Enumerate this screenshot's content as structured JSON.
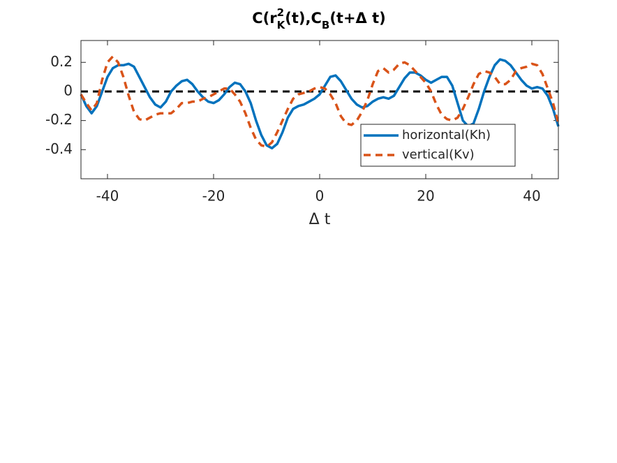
{
  "chart_data": {
    "type": "line",
    "title_parts": [
      "C(r",
      "2",
      "K",
      "(t),C",
      "B",
      "(t+Δ t)"
    ],
    "xlabel": "Δ t",
    "xlim": [
      -45,
      45
    ],
    "xticks": [
      -40,
      -20,
      0,
      20,
      40
    ],
    "ylim": [
      -0.6,
      0.35
    ],
    "yticks": [
      -0.4,
      -0.2,
      0,
      0.2
    ],
    "grid": false,
    "legend": "southeast",
    "reference_line": {
      "y": 0,
      "color": "#000000"
    },
    "x": [
      -45,
      -44,
      -43,
      -42,
      -41,
      -40,
      -39,
      -38,
      -37,
      -36,
      -35,
      -34,
      -33,
      -32,
      -31,
      -30,
      -29,
      -28,
      -27,
      -26,
      -25,
      -24,
      -23,
      -22,
      -21,
      -20,
      -19,
      -18,
      -17,
      -16,
      -15,
      -14,
      -13,
      -12,
      -11,
      -10,
      -9,
      -8,
      -7,
      -6,
      -5,
      -4,
      -3,
      -2,
      -1,
      0,
      1,
      2,
      3,
      4,
      5,
      6,
      7,
      8,
      9,
      10,
      11,
      12,
      13,
      14,
      15,
      16,
      17,
      18,
      19,
      20,
      21,
      22,
      23,
      24,
      25,
      26,
      27,
      28,
      29,
      30,
      31,
      32,
      33,
      34,
      35,
      36,
      37,
      38,
      39,
      40,
      41,
      42,
      43,
      44,
      45
    ],
    "series": [
      {
        "name": "horizontal(Kh)",
        "color": "#0072bd",
        "dash": false,
        "values": [
          -0.02,
          -0.1,
          -0.15,
          -0.1,
          0.0,
          0.1,
          0.16,
          0.18,
          0.18,
          0.19,
          0.17,
          0.1,
          0.03,
          -0.04,
          -0.09,
          -0.11,
          -0.07,
          0.0,
          0.04,
          0.07,
          0.08,
          0.05,
          0.0,
          -0.04,
          -0.07,
          -0.08,
          -0.06,
          -0.02,
          0.03,
          0.06,
          0.05,
          0.0,
          -0.08,
          -0.2,
          -0.3,
          -0.37,
          -0.39,
          -0.36,
          -0.28,
          -0.18,
          -0.12,
          -0.1,
          -0.09,
          -0.07,
          -0.05,
          -0.02,
          0.04,
          0.1,
          0.11,
          0.07,
          0.01,
          -0.05,
          -0.09,
          -0.11,
          -0.1,
          -0.07,
          -0.05,
          -0.04,
          -0.05,
          -0.03,
          0.03,
          0.09,
          0.13,
          0.13,
          0.11,
          0.08,
          0.06,
          0.08,
          0.1,
          0.1,
          0.04,
          -0.08,
          -0.2,
          -0.24,
          -0.22,
          -0.12,
          0.0,
          0.1,
          0.18,
          0.22,
          0.21,
          0.18,
          0.13,
          0.08,
          0.04,
          0.02,
          0.03,
          0.02,
          -0.03,
          -0.12,
          -0.24
        ]
      },
      {
        "name": "vertical(Kv)",
        "color": "#d95319",
        "dash": true,
        "values": [
          -0.02,
          -0.08,
          -0.13,
          -0.08,
          0.08,
          0.2,
          0.24,
          0.2,
          0.1,
          -0.03,
          -0.14,
          -0.19,
          -0.2,
          -0.18,
          -0.16,
          -0.15,
          -0.15,
          -0.15,
          -0.12,
          -0.08,
          -0.08,
          -0.07,
          -0.07,
          -0.05,
          -0.04,
          -0.02,
          0.0,
          0.02,
          0.02,
          -0.02,
          -0.07,
          -0.15,
          -0.25,
          -0.33,
          -0.37,
          -0.38,
          -0.35,
          -0.28,
          -0.2,
          -0.12,
          -0.05,
          -0.02,
          -0.01,
          0.0,
          0.02,
          0.03,
          0.02,
          -0.02,
          -0.08,
          -0.17,
          -0.22,
          -0.23,
          -0.2,
          -0.14,
          -0.06,
          0.05,
          0.14,
          0.16,
          0.13,
          0.15,
          0.19,
          0.2,
          0.18,
          0.14,
          0.1,
          0.06,
          0.0,
          -0.09,
          -0.16,
          -0.19,
          -0.2,
          -0.18,
          -0.12,
          -0.04,
          0.05,
          0.12,
          0.14,
          0.13,
          0.1,
          0.05,
          0.05,
          0.08,
          0.14,
          0.16,
          0.17,
          0.19,
          0.18,
          0.12,
          0.02,
          -0.08,
          -0.22
        ]
      }
    ]
  }
}
